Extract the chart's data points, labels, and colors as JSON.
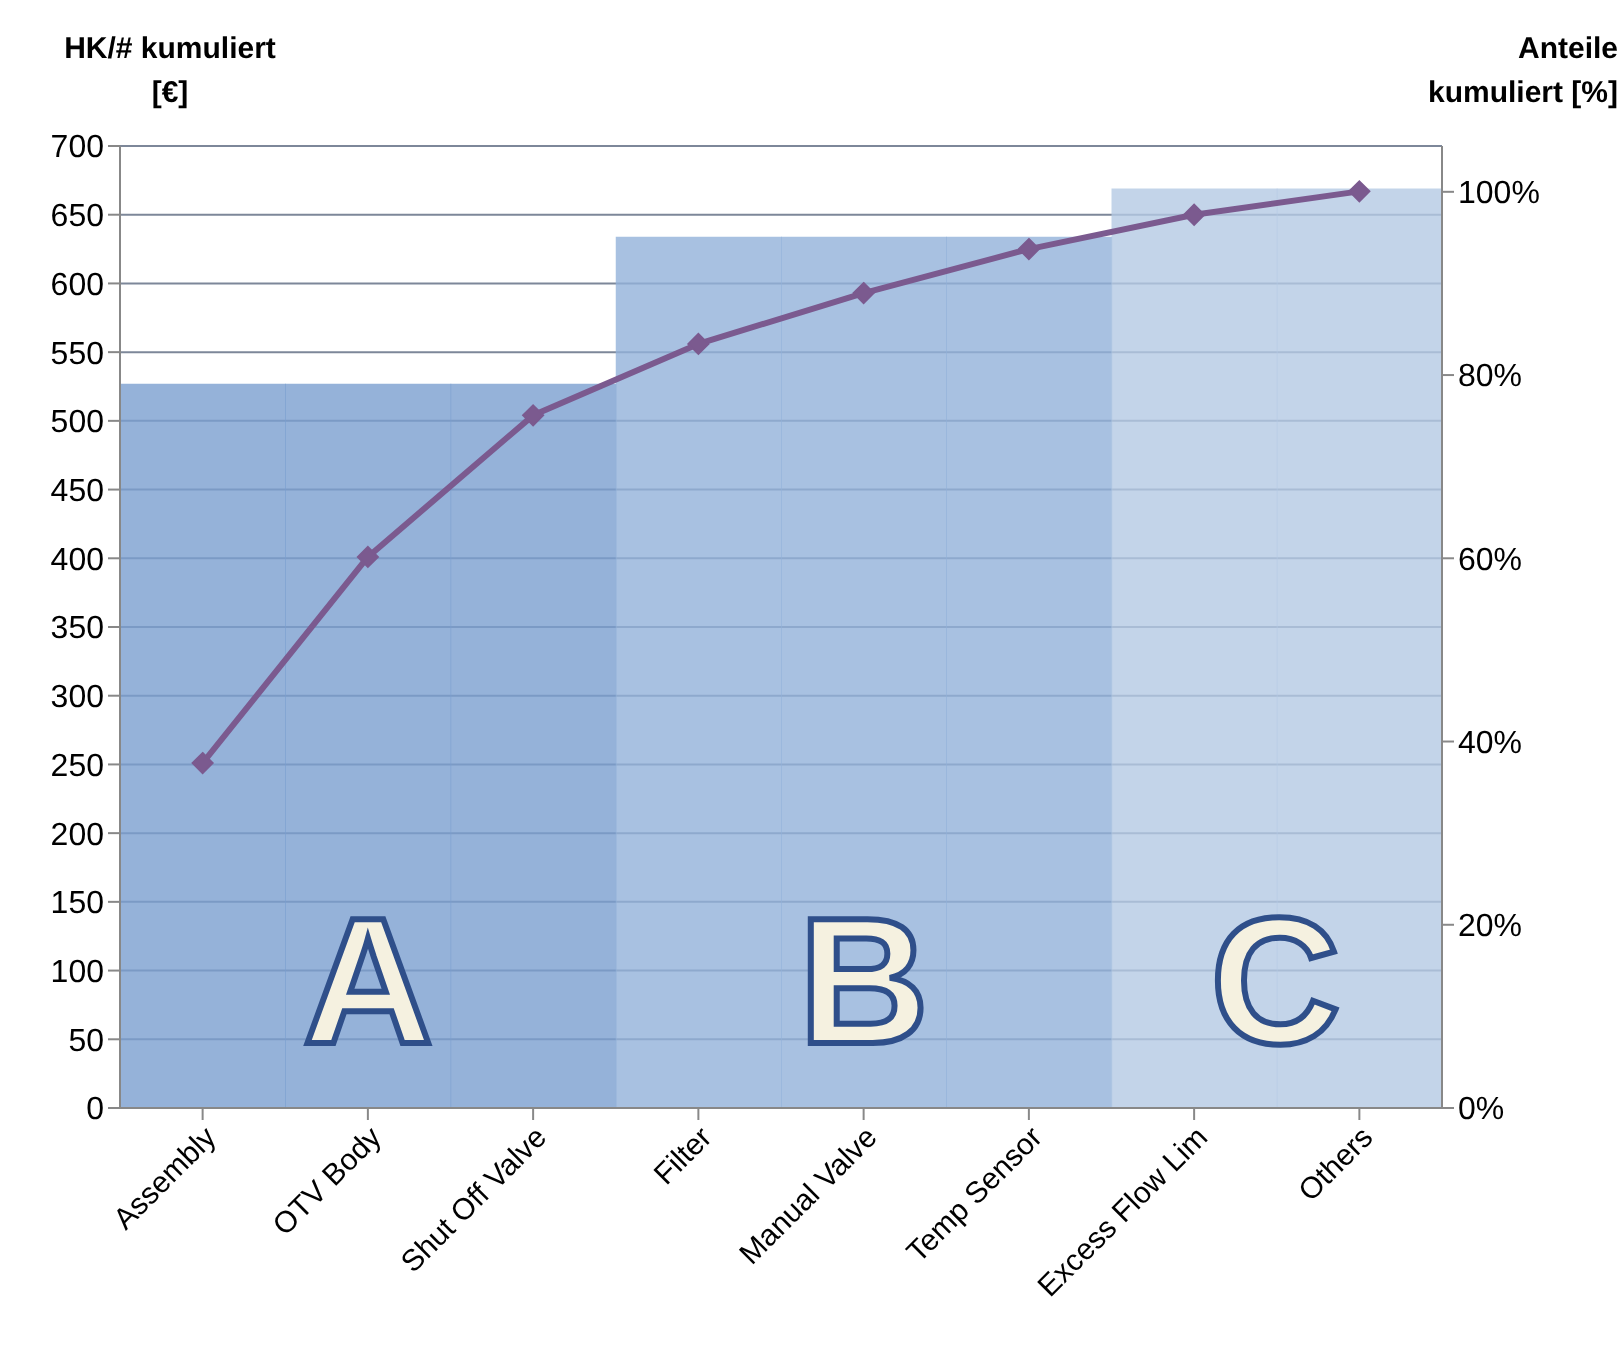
{
  "chart_data": {
    "type": "bar",
    "categories": [
      "Assembly",
      "OTV Body",
      "Shut Off Valve",
      "Filter",
      "Manual Valve",
      "Temp Sensor",
      "Excess Flow Lim",
      "Others"
    ],
    "series": [
      {
        "colors": [
          "#7a9fcf",
          "#7a9fcf",
          "#7a9fcf",
          "#92b1d9",
          "#92b1d9",
          "#92b1d9",
          "#b4c9e4",
          "#b4c9e4"
        ],
        "values": [
          527,
          527,
          527,
          634,
          634,
          634,
          669,
          669
        ]
      },
      {
        "type": "line",
        "color": "#7b5a8f",
        "values": [
          251,
          401,
          504,
          556,
          593,
          625,
          650,
          667
        ]
      }
    ],
    "ylabel": "HK/# kumuliert [€]",
    "y2label": "Anteile kumuliert [%]",
    "ylim": [
      0,
      700
    ],
    "yticks": [
      0,
      50,
      100,
      150,
      200,
      250,
      300,
      350,
      400,
      450,
      500,
      550,
      600,
      650,
      700
    ],
    "y2lim": [
      0,
      105
    ],
    "y2ticks": [
      {
        "value": 0,
        "label": "0%"
      },
      {
        "value": 20,
        "label": "20%"
      },
      {
        "value": 40,
        "label": "40%"
      },
      {
        "value": 60,
        "label": "60%"
      },
      {
        "value": 80,
        "label": "80%"
      },
      {
        "value": 100,
        "label": "100%"
      }
    ],
    "annotations": [
      "A",
      "B",
      "C"
    ],
    "grid": "y",
    "marker": "diamond",
    "legend": false
  }
}
